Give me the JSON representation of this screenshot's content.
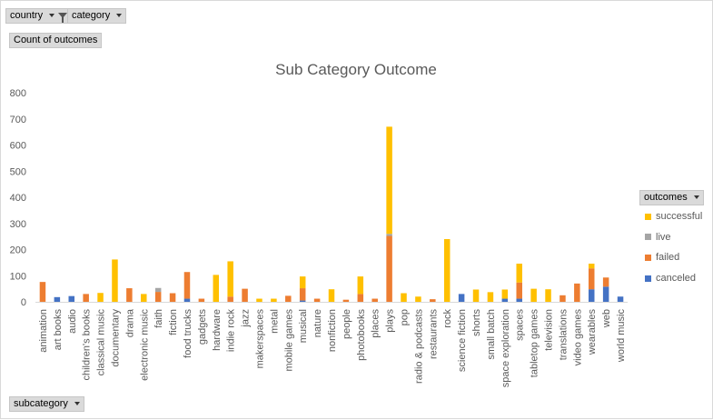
{
  "filters": {
    "country": "country",
    "category": "category",
    "values_field": "Count of outcomes",
    "axis_field": "subcategory",
    "legend_field": "outcomes"
  },
  "colors": {
    "successful": "#ffc000",
    "live": "#a5a5a5",
    "failed": "#ed7d31",
    "canceled": "#4472c4",
    "axis_text": "#595959",
    "grid": "#d9d9d9"
  },
  "chart_data": {
    "type": "bar",
    "stacked": true,
    "title": "Sub Category Outcome",
    "xlabel": "",
    "ylabel": "",
    "ylim": [
      0,
      800
    ],
    "yticks": [
      0,
      100,
      200,
      300,
      400,
      500,
      600,
      700,
      800
    ],
    "grid": false,
    "legend_position": "right",
    "categories": [
      "animation",
      "art books",
      "audio",
      "children's books",
      "classical music",
      "documentary",
      "drama",
      "electronic music",
      "faith",
      "fiction",
      "food trucks",
      "gadgets",
      "hardware",
      "indie rock",
      "jazz",
      "makerspaces",
      "metal",
      "mobile games",
      "musical",
      "nature",
      "nonfiction",
      "people",
      "photobooks",
      "places",
      "plays",
      "pop",
      "radio & podcasts",
      "restaurants",
      "rock",
      "science fiction",
      "shorts",
      "small batch",
      "space exploration",
      "spaces",
      "tabletop games",
      "television",
      "translations",
      "video games",
      "wearables",
      "web",
      "world music"
    ],
    "series": [
      {
        "name": "canceled",
        "values": [
          0,
          18,
          22,
          0,
          0,
          0,
          0,
          0,
          0,
          0,
          12,
          0,
          0,
          0,
          0,
          0,
          0,
          0,
          5,
          0,
          0,
          0,
          0,
          0,
          0,
          0,
          0,
          0,
          0,
          30,
          0,
          0,
          12,
          12,
          0,
          0,
          0,
          0,
          48,
          58,
          20
        ]
      },
      {
        "name": "failed",
        "values": [
          76,
          0,
          0,
          30,
          0,
          0,
          52,
          0,
          38,
          33,
          102,
          12,
          0,
          20,
          50,
          0,
          0,
          23,
          47,
          12,
          0,
          8,
          30,
          12,
          252,
          0,
          0,
          10,
          0,
          0,
          0,
          0,
          0,
          62,
          0,
          0,
          25,
          70,
          80,
          35,
          0
        ]
      },
      {
        "name": "live",
        "values": [
          0,
          0,
          0,
          0,
          0,
          0,
          0,
          0,
          15,
          0,
          0,
          0,
          0,
          0,
          0,
          0,
          0,
          0,
          0,
          0,
          0,
          0,
          0,
          0,
          8,
          0,
          0,
          0,
          0,
          0,
          0,
          0,
          0,
          0,
          0,
          0,
          0,
          0,
          0,
          0,
          0
        ]
      },
      {
        "name": "successful",
        "values": [
          0,
          0,
          0,
          0,
          34,
          162,
          0,
          30,
          0,
          0,
          0,
          0,
          103,
          135,
          0,
          12,
          12,
          0,
          45,
          0,
          48,
          0,
          67,
          0,
          410,
          33,
          20,
          0,
          240,
          0,
          47,
          37,
          35,
          72,
          50,
          48,
          0,
          0,
          18,
          0,
          0
        ]
      }
    ],
    "legend_order": [
      "successful",
      "live",
      "failed",
      "canceled"
    ]
  }
}
